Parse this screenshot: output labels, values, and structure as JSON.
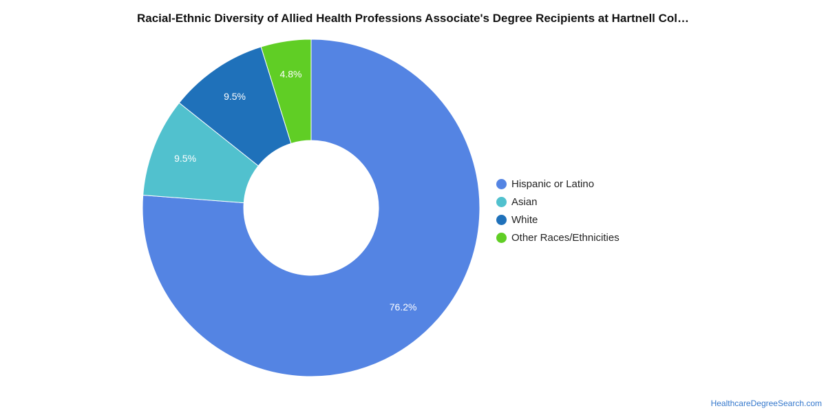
{
  "chart_data": {
    "type": "pie",
    "title": "Racial-Ethnic Diversity of Allied Health Professions Associate's Degree Recipients at Hartnell Col…",
    "donut": true,
    "legend_position": "right",
    "slices": [
      {
        "label": "Hispanic or Latino",
        "value": 76.2,
        "display": "76.2%",
        "color": "#5484e3"
      },
      {
        "label": "Asian",
        "value": 9.5,
        "display": "9.5%",
        "color": "#51c1ce"
      },
      {
        "label": "White",
        "value": 9.5,
        "display": "9.5%",
        "color": "#1f71ba"
      },
      {
        "label": "Other Races/Ethnicities",
        "value": 4.8,
        "display": "4.8%",
        "color": "#60ce25"
      }
    ]
  },
  "source": {
    "label": "HealthcareDegreeSearch.com"
  }
}
